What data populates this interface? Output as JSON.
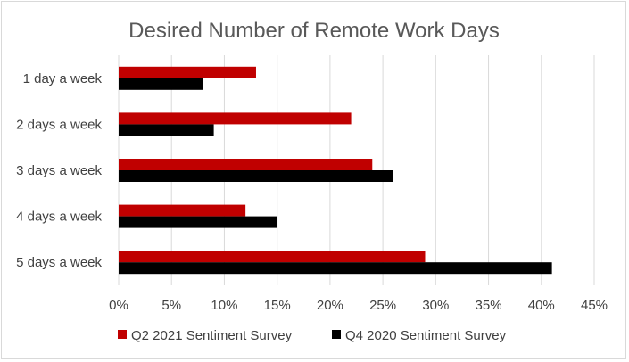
{
  "chart_data": {
    "type": "bar",
    "orientation": "horizontal",
    "title": "Desired Number of Remote Work Days",
    "categories": [
      "1 day a week",
      "2 days a week",
      "3 days a week",
      "4 days a week",
      "5 days a week"
    ],
    "series": [
      {
        "name": "Q2 2021 Sentiment Survey",
        "color": "#c00000",
        "values": [
          13,
          22,
          24,
          12,
          29
        ]
      },
      {
        "name": "Q4 2020 Sentiment Survey",
        "color": "#000000",
        "values": [
          8,
          9,
          26,
          15,
          41
        ]
      }
    ],
    "xlim": [
      0,
      45
    ],
    "x_ticks": [
      "0%",
      "5%",
      "10%",
      "15%",
      "20%",
      "25%",
      "30%",
      "35%",
      "40%",
      "45%"
    ],
    "grid": true,
    "legend_position": "bottom"
  }
}
